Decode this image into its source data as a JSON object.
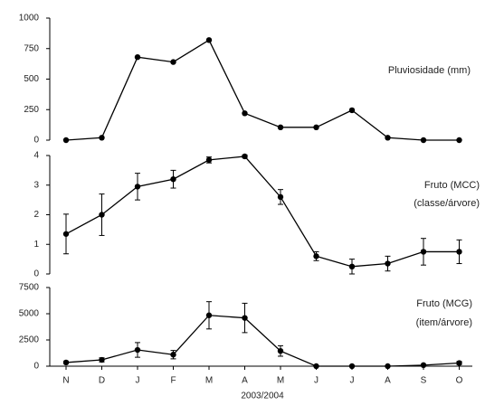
{
  "chart_data": [
    {
      "type": "line",
      "annotation": [
        "Pluviosidade (mm)"
      ],
      "values": [
        0,
        20,
        680,
        640,
        820,
        220,
        105,
        105,
        245,
        20,
        0,
        0
      ],
      "color": "#000000",
      "ylim": [
        0,
        1000
      ],
      "yticks": [
        0,
        250,
        500,
        750,
        1000
      ]
    },
    {
      "type": "line",
      "annotation": [
        "Fruto (MCC)",
        "(classe/árvore)"
      ],
      "values": [
        1.35,
        2.0,
        2.95,
        3.2,
        3.85,
        3.97,
        2.6,
        0.6,
        0.25,
        0.35,
        0.75,
        0.75
      ],
      "errors": [
        0.67,
        0.7,
        0.45,
        0.3,
        0.1,
        0.05,
        0.25,
        0.15,
        0.25,
        0.25,
        0.45,
        0.4
      ],
      "color": "#000000",
      "ylim": [
        0,
        4
      ],
      "yticks": [
        0,
        1,
        2,
        3,
        4
      ]
    },
    {
      "type": "line",
      "annotation": [
        "Fruto (MCG)",
        "(item/árvore)"
      ],
      "categories": [
        "N",
        "D",
        "J",
        "F",
        "M",
        "A",
        "M",
        "J",
        "J",
        "A",
        "S",
        "O"
      ],
      "x_label": "2003/2004",
      "values": [
        350,
        600,
        1550,
        1100,
        4850,
        4600,
        1450,
        0,
        0,
        0,
        100,
        300
      ],
      "errors": [
        100,
        200,
        700,
        400,
        1300,
        1400,
        500,
        0,
        0,
        0,
        50,
        150
      ],
      "color": "#000000",
      "ylim": [
        0,
        7500
      ],
      "yticks": [
        0,
        2500,
        5000,
        7500
      ]
    }
  ]
}
